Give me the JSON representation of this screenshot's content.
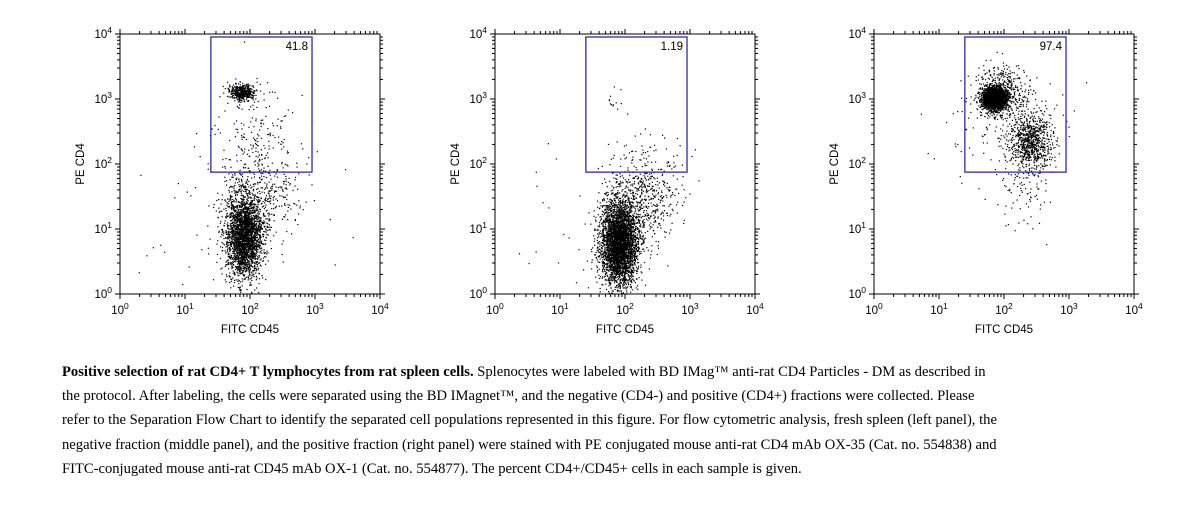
{
  "chart_data": [
    {
      "type": "scatter",
      "panel": "left",
      "xlabel": "FITC CD45",
      "ylabel": "PE CD4",
      "xscale": "log",
      "yscale": "log",
      "xlim": [
        1,
        10000
      ],
      "ylim": [
        1,
        10000
      ],
      "xticks": [
        "10^0",
        "10^1",
        "10^2",
        "10^3",
        "10^4"
      ],
      "yticks": [
        "10^0",
        "10^1",
        "10^2",
        "10^3",
        "10^4"
      ],
      "gate": {
        "x": [
          25,
          900
        ],
        "y": [
          75,
          9000
        ],
        "percent_label": "41.8"
      },
      "clusters": [
        {
          "cx": 75,
          "cy": 1300,
          "sx": 0.1,
          "sy": 0.06,
          "n": 450
        },
        {
          "cx": 120,
          "cy": 300,
          "sx": 0.3,
          "sy": 0.35,
          "n": 160
        },
        {
          "cx": 80,
          "cy": 8,
          "sx": 0.14,
          "sy": 0.32,
          "n": 2600
        },
        {
          "cx": 150,
          "cy": 40,
          "sx": 0.3,
          "sy": 0.35,
          "n": 350
        },
        {
          "cx": 60,
          "cy": 15,
          "sx": 0.7,
          "sy": 0.6,
          "n": 60
        }
      ]
    },
    {
      "type": "scatter",
      "panel": "middle",
      "xlabel": "FITC CD45",
      "ylabel": "PE CD4",
      "xscale": "log",
      "yscale": "log",
      "xlim": [
        1,
        10000
      ],
      "ylim": [
        1,
        10000
      ],
      "xticks": [
        "10^0",
        "10^1",
        "10^2",
        "10^3",
        "10^4"
      ],
      "yticks": [
        "10^0",
        "10^1",
        "10^2",
        "10^3",
        "10^4"
      ],
      "gate": {
        "x": [
          25,
          900
        ],
        "y": [
          75,
          9000
        ],
        "percent_label": "1.19"
      },
      "clusters": [
        {
          "cx": 80,
          "cy": 6,
          "sx": 0.14,
          "sy": 0.32,
          "n": 3600
        },
        {
          "cx": 160,
          "cy": 25,
          "sx": 0.28,
          "sy": 0.35,
          "n": 600
        },
        {
          "cx": 70,
          "cy": 1000,
          "sx": 0.08,
          "sy": 0.1,
          "n": 12
        },
        {
          "cx": 200,
          "cy": 120,
          "sx": 0.3,
          "sy": 0.25,
          "n": 50
        },
        {
          "cx": 40,
          "cy": 8,
          "sx": 0.7,
          "sy": 0.6,
          "n": 40
        }
      ]
    },
    {
      "type": "scatter",
      "panel": "right",
      "xlabel": "FITC CD45",
      "ylabel": "PE CD4",
      "xscale": "log",
      "yscale": "log",
      "xlim": [
        1,
        10000
      ],
      "ylim": [
        1,
        10000
      ],
      "xticks": [
        "10^0",
        "10^1",
        "10^2",
        "10^3",
        "10^4"
      ],
      "yticks": [
        "10^0",
        "10^1",
        "10^2",
        "10^3",
        "10^4"
      ],
      "gate": {
        "x": [
          25,
          900
        ],
        "y": [
          75,
          9000
        ],
        "percent_label": "97.4"
      },
      "clusters": [
        {
          "cx": 70,
          "cy": 1050,
          "sx": 0.09,
          "sy": 0.08,
          "n": 2300
        },
        {
          "cx": 90,
          "cy": 1200,
          "sx": 0.2,
          "sy": 0.22,
          "n": 500
        },
        {
          "cx": 250,
          "cy": 230,
          "sx": 0.16,
          "sy": 0.22,
          "n": 800
        },
        {
          "cx": 200,
          "cy": 40,
          "sx": 0.18,
          "sy": 0.35,
          "n": 80
        },
        {
          "cx": 120,
          "cy": 300,
          "sx": 0.5,
          "sy": 0.45,
          "n": 120
        }
      ]
    }
  ],
  "caption": {
    "bold": "Positive selection of rat CD4+ T lymphocytes from rat spleen cells.",
    "text": " Splenocytes were labeled with BD IMag™ anti-rat CD4 Particles - DM as described in the protocol. After labeling, the cells were separated using the BD IMagnet™, and the negative (CD4-) and positive (CD4+) fractions were collected. Please refer to the Separation Flow Chart to identify the separated cell populations represented in this figure. For flow cytometric analysis, fresh spleen (left panel), the negative fraction (middle panel), and the positive fraction (right panel) were stained with PE conjugated mouse anti-rat CD4 mAb OX-35 (Cat. no. 554838) and FITC-conjugated mouse anti-rat CD45 mAb OX-1 (Cat. no. 554877). The percent CD4+/CD45+ cells in each sample is given."
  }
}
